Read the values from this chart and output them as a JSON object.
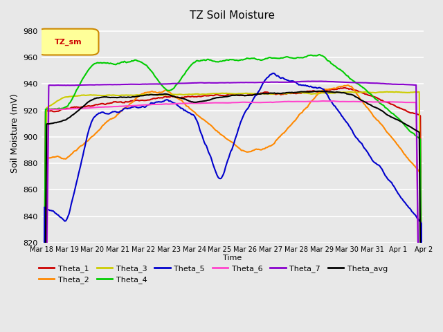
{
  "title": "TZ Soil Moisture",
  "ylabel": "Soil Moisture (mV)",
  "xlabel": "Time",
  "ylim": [
    820,
    985
  ],
  "yticks": [
    820,
    840,
    860,
    880,
    900,
    920,
    940,
    960,
    980
  ],
  "xtick_labels": [
    "Mar 18",
    "Mar 19",
    "Mar 20",
    "Mar 21",
    "Mar 22",
    "Mar 23",
    "Mar 24",
    "Mar 25",
    "Mar 26",
    "Mar 27",
    "Mar 28",
    "Mar 29",
    "Mar 30",
    "Mar 31",
    "Apr 1",
    "Apr 2"
  ],
  "legend_label": "TZ_sm",
  "colors": {
    "Theta_1": "#cc0000",
    "Theta_2": "#ff8800",
    "Theta_3": "#cccc00",
    "Theta_4": "#00cc00",
    "Theta_5": "#0000cc",
    "Theta_6": "#ff44cc",
    "Theta_7": "#8800cc",
    "Theta_avg": "#000000"
  },
  "plot_bg_color": "#e8e8e8",
  "grid_color": "#ffffff"
}
